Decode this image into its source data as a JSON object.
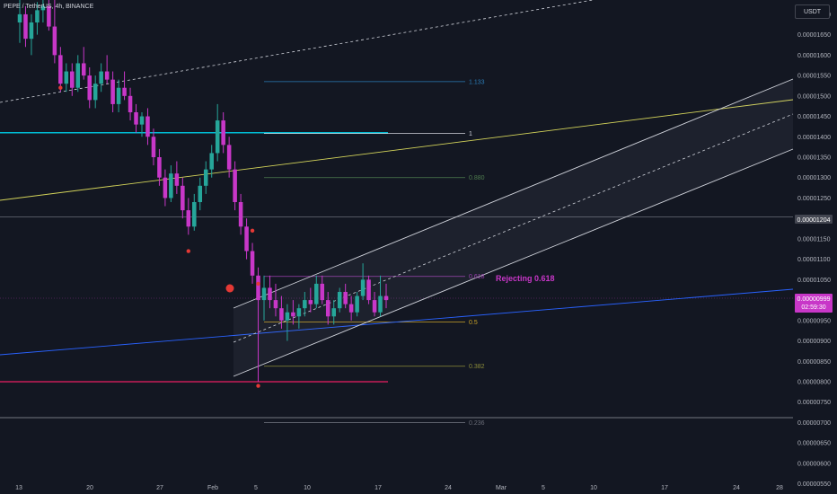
{
  "header": {
    "symbol_line": "PEPE / TetherUS, 4h, BINANCE",
    "currency_button": "USDT"
  },
  "annotation": {
    "text": "Rejecting 0.618",
    "color": "#c837c8"
  },
  "price_badges": {
    "level_price": "0.00001204",
    "last_price": "0.00000999",
    "countdown": "02:59:30",
    "last_price_color": "#c837c8"
  },
  "colors": {
    "background": "#131722",
    "candle_up": "#26a69a",
    "candle_down": "#c837c8",
    "channel": "#d1d4dc",
    "yellow_trend": "#d4d45a",
    "blue_trend": "#2962ff",
    "cyan_level": "#00bcd4",
    "pink_level": "#e91e63"
  },
  "chart_data": {
    "type": "candlestick",
    "title": "PEPE / TetherUS, 4h, BINANCE",
    "x_tick_labels": [
      "13",
      "20",
      "27",
      "Feb",
      "5",
      "10",
      "17",
      "24",
      "Mar",
      "5",
      "10",
      "17",
      "24",
      "28"
    ],
    "y_tick_labels": [
      "0.00001700",
      "0.00001650",
      "0.00001600",
      "0.00001550",
      "0.00001500",
      "0.00001450",
      "0.00001400",
      "0.00001350",
      "0.00001300",
      "0.00001250",
      "0.00001200",
      "0.00001150",
      "0.00001100",
      "0.00001050",
      "0.00001000",
      "0.00000950",
      "0.00000900",
      "0.00000850",
      "0.00000800",
      "0.00000750",
      "0.00000700",
      "0.00000650",
      "0.00000600",
      "0.00000550"
    ],
    "ylim": [
      5.25e-06,
      1.735e-05
    ],
    "fib_levels": [
      {
        "label": "1.133",
        "price": 1.535e-05,
        "color": "#2a7bb5"
      },
      {
        "label": "1",
        "price": 1.408e-05,
        "color": "#d1d4dc"
      },
      {
        "label": "0.880",
        "price": 1.3e-05,
        "color": "#4f7d4f"
      },
      {
        "label": "0.618",
        "price": 1.058e-05,
        "color": "#9b3fb0"
      },
      {
        "label": "0.5",
        "price": 9.46e-06,
        "color": "#c9a227"
      },
      {
        "label": "0.382",
        "price": 8.38e-06,
        "color": "#8d8d3a"
      },
      {
        "label": "0.236",
        "price": 7e-06,
        "color": "#6a6d78"
      }
    ],
    "horizontal_levels": [
      {
        "name": "cyan resistance",
        "price": 1.41e-05
      },
      {
        "name": "pink support",
        "price": 8e-06
      },
      {
        "name": "grey level",
        "price": 1.204e-05
      },
      {
        "name": "grey lower level",
        "price": 7.12e-06
      }
    ],
    "ohlc": [
      [
        1.68e-05,
        1.74e-05,
        1.63e-05,
        1.7e-05
      ],
      [
        1.7e-05,
        1.72e-05,
        1.62e-05,
        1.64e-05
      ],
      [
        1.64e-05,
        1.7e-05,
        1.6e-05,
        1.68e-05
      ],
      [
        1.68e-05,
        1.73e-05,
        1.65e-05,
        1.71e-05
      ],
      [
        1.71e-05,
        1.74e-05,
        1.68e-05,
        1.72e-05
      ],
      [
        1.72e-05,
        1.74e-05,
        1.66e-05,
        1.67e-05
      ],
      [
        1.67e-05,
        1.74e-05,
        1.58e-05,
        1.6e-05
      ],
      [
        1.6e-05,
        1.62e-05,
        1.51e-05,
        1.53e-05
      ],
      [
        1.53e-05,
        1.58e-05,
        1.51e-05,
        1.56e-05
      ],
      [
        1.56e-05,
        1.58e-05,
        1.5e-05,
        1.52e-05
      ],
      [
        1.52e-05,
        1.6e-05,
        1.51e-05,
        1.58e-05
      ],
      [
        1.58e-05,
        1.62e-05,
        1.54e-05,
        1.55e-05
      ],
      [
        1.55e-05,
        1.57e-05,
        1.47e-05,
        1.49e-05
      ],
      [
        1.49e-05,
        1.55e-05,
        1.47e-05,
        1.53e-05
      ],
      [
        1.53e-05,
        1.58e-05,
        1.51e-05,
        1.56e-05
      ],
      [
        1.56e-05,
        1.6e-05,
        1.53e-05,
        1.54e-05
      ],
      [
        1.54e-05,
        1.56e-05,
        1.46e-05,
        1.48e-05
      ],
      [
        1.48e-05,
        1.54e-05,
        1.46e-05,
        1.52e-05
      ],
      [
        1.52e-05,
        1.56e-05,
        1.49e-05,
        1.5e-05
      ],
      [
        1.5e-05,
        1.52e-05,
        1.44e-05,
        1.46e-05
      ],
      [
        1.46e-05,
        1.48e-05,
        1.41e-05,
        1.43e-05
      ],
      [
        1.43e-05,
        1.46e-05,
        1.4e-05,
        1.45e-05
      ],
      [
        1.45e-05,
        1.47e-05,
        1.38e-05,
        1.4e-05
      ],
      [
        1.4e-05,
        1.42e-05,
        1.33e-05,
        1.35e-05
      ],
      [
        1.35e-05,
        1.37e-05,
        1.28e-05,
        1.3e-05
      ],
      [
        1.3e-05,
        1.32e-05,
        1.23e-05,
        1.25e-05
      ],
      [
        1.25e-05,
        1.33e-05,
        1.24e-05,
        1.31e-05
      ],
      [
        1.31e-05,
        1.34e-05,
        1.26e-05,
        1.28e-05
      ],
      [
        1.28e-05,
        1.3e-05,
        1.2e-05,
        1.22e-05
      ],
      [
        1.22e-05,
        1.25e-05,
        1.16e-05,
        1.18e-05
      ],
      [
        1.18e-05,
        1.26e-05,
        1.17e-05,
        1.24e-05
      ],
      [
        1.24e-05,
        1.3e-05,
        1.22e-05,
        1.28e-05
      ],
      [
        1.28e-05,
        1.34e-05,
        1.26e-05,
        1.32e-05
      ],
      [
        1.32e-05,
        1.38e-05,
        1.3e-05,
        1.36e-05
      ],
      [
        1.36e-05,
        1.48e-05,
        1.34e-05,
        1.44e-05
      ],
      [
        1.44e-05,
        1.46e-05,
        1.36e-05,
        1.38e-05
      ],
      [
        1.38e-05,
        1.4e-05,
        1.3e-05,
        1.32e-05
      ],
      [
        1.32e-05,
        1.34e-05,
        1.22e-05,
        1.24e-05
      ],
      [
        1.24e-05,
        1.26e-05,
        1.16e-05,
        1.18e-05
      ],
      [
        1.18e-05,
        1.2e-05,
        1.1e-05,
        1.12e-05
      ],
      [
        1.12e-05,
        1.14e-05,
        1.04e-05,
        1.06e-05
      ],
      [
        1.06e-05,
        1.08e-05,
        8e-06,
        1e-05
      ],
      [
        1e-05,
        1.06e-05,
        9.5e-06,
        1.03e-05
      ],
      [
        1.03e-05,
        1.06e-05,
        9.8e-06,
        1e-05
      ],
      [
        1e-05,
        1.04e-05,
        9.6e-06,
        9.8e-06
      ],
      [
        9.8e-06,
        1.01e-05,
        9.3e-06,
        9.5e-06
      ],
      [
        9.5e-06,
        9.9e-06,
        9e-06,
        9.7e-06
      ],
      [
        9.7e-06,
        1e-05,
        9.4e-06,
        9.6e-06
      ],
      [
        9.6e-06,
        9.9e-06,
        9.3e-06,
        9.8e-06
      ],
      [
        9.8e-06,
        1.02e-05,
        9.6e-06,
        1e-05
      ],
      [
        1e-05,
        1.03e-05,
        9.7e-06,
        9.9e-06
      ],
      [
        9.9e-06,
        1.06e-05,
        9.8e-06,
        1.04e-05
      ],
      [
        1.04e-05,
        1.06e-05,
        9.9e-06,
        1e-05
      ],
      [
        1e-05,
        1.02e-05,
        9.4e-06,
        9.6e-06
      ],
      [
        9.6e-06,
        1e-05,
        9.4e-06,
        9.8e-06
      ],
      [
        9.8e-06,
        1.03e-05,
        9.7e-06,
        1.02e-05
      ],
      [
        1.02e-05,
        1.04e-05,
        9.8e-06,
        9.9e-06
      ],
      [
        9.9e-06,
        1.01e-05,
        9.5e-06,
        9.7e-06
      ],
      [
        9.7e-06,
        1.02e-05,
        9.6e-06,
        1.01e-05
      ],
      [
        1.01e-05,
        1.09e-05,
        1e-05,
        1.05e-05
      ],
      [
        1.05e-05,
        1.06e-05,
        9.9e-06,
        1e-05
      ],
      [
        1e-05,
        1.02e-05,
        9.6e-06,
        9.7e-06
      ],
      [
        9.7e-06,
        1.06e-05,
        9.6e-06,
        1.01e-05
      ],
      [
        1.01e-05,
        1.04e-05,
        9.8e-06,
        1e-05
      ]
    ],
    "markers": [
      {
        "type": "dot",
        "price": 1.52e-05,
        "candle_index": 7
      },
      {
        "type": "dot",
        "price": 1.12e-05,
        "candle_index": 29
      },
      {
        "type": "dot",
        "price": 1.17e-05,
        "candle_index": 40
      },
      {
        "type": "dot",
        "price": 1.04e-05,
        "candle_index": 41
      },
      {
        "type": "dot",
        "price": 7.9e-06,
        "candle_index": 41
      }
    ]
  }
}
